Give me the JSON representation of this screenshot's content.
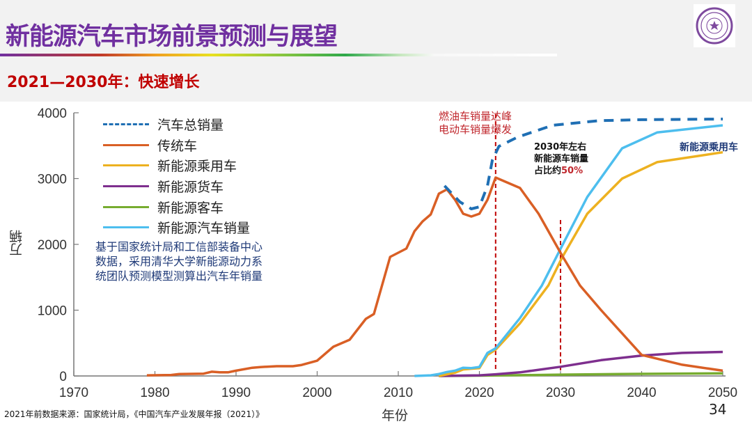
{
  "header": {
    "title": "新能源汽车市场前景预测与展望",
    "subtitle": "2021—2030年：快速增长",
    "logo": "清华大学"
  },
  "footer": {
    "source": "2021年前数据来源：国家统计局，《中国汽车产业发展年报（2021）》",
    "page_number": "34"
  },
  "chart_data": {
    "type": "line",
    "xlabel": "年份",
    "ylabel": "万辆",
    "xlim": [
      1970,
      2050
    ],
    "ylim": [
      0,
      4000
    ],
    "xticks": [
      1970,
      1980,
      1990,
      2000,
      2010,
      2020,
      2030,
      2040,
      2050
    ],
    "yticks": [
      0,
      1000,
      2000,
      3000,
      4000
    ],
    "grid": false,
    "legend_position": "top-left",
    "series": [
      {
        "name": "汽车总销量",
        "color": "#1f6fb4",
        "style": "dashed",
        "x": [
          2015.7,
          2017.6,
          2019,
          2020,
          2021,
          2021.6,
          2022.4,
          2024.7,
          2029,
          2034.8,
          2040,
          2050
        ],
        "y": [
          2890,
          2645,
          2540,
          2570,
          2890,
          3280,
          3490,
          3630,
          3810,
          3880,
          3895,
          3905
        ]
      },
      {
        "name": "传统车",
        "color": "#d95f25",
        "style": "solid",
        "x": [
          1979,
          1982,
          1983,
          1986,
          1987,
          1988,
          1989,
          1990,
          1992,
          1993,
          1995,
          1997,
          1998,
          2000,
          2002,
          2004,
          2006,
          2007,
          2009,
          2011,
          2012,
          2013,
          2014,
          2015,
          2016,
          2017,
          2018,
          2019,
          2020,
          2021,
          2022,
          2025,
          2027.3,
          2030.2,
          2032.4,
          2035,
          2040,
          2045,
          2050
        ],
        "y": [
          10,
          15,
          30,
          35,
          65,
          55,
          55,
          80,
          125,
          135,
          148,
          148,
          165,
          233,
          444,
          550,
          868,
          942,
          1810,
          1937,
          2200,
          2350,
          2455,
          2770,
          2836,
          2677,
          2466,
          2423,
          2466,
          2677,
          3016,
          2857,
          2466,
          1830,
          1375,
          1000,
          320,
          170,
          80
        ]
      },
      {
        "name": "新能源乘用车",
        "color": "#edb120",
        "style": "solid",
        "x": [
          2015,
          2017,
          2018,
          2019,
          2020,
          2021,
          2022,
          2025,
          2028.5,
          2030.2,
          2033.3,
          2037.6,
          2041.9,
          2050
        ],
        "y": [
          0,
          50,
          100,
          110,
          120,
          320,
          400,
          800,
          1375,
          1800,
          2466,
          3000,
          3250,
          3400
        ]
      },
      {
        "name": "新能源货车",
        "color": "#7e2f8e",
        "style": "solid",
        "x": [
          2015,
          2020,
          2022,
          2025,
          2030,
          2035,
          2040,
          2045,
          2050
        ],
        "y": [
          0,
          10,
          25,
          55,
          140,
          240,
          310,
          350,
          365
        ]
      },
      {
        "name": "新能源客车",
        "color": "#77ac30",
        "style": "solid",
        "x": [
          2015,
          2020,
          2025,
          2030,
          2040,
          2050
        ],
        "y": [
          0,
          5,
          12,
          20,
          32,
          40
        ]
      },
      {
        "name": "新能源汽车销量",
        "color": "#4dbeee",
        "style": "solid",
        "x": [
          2012,
          2014,
          2015,
          2016,
          2017,
          2018,
          2019,
          2020,
          2021,
          2022,
          2025,
          2027.7,
          2030.2,
          2033.3,
          2037.6,
          2041.9,
          2050
        ],
        "y": [
          0,
          10,
          30,
          60,
          80,
          125,
          120,
          136,
          350,
          420,
          880,
          1375,
          1980,
          2720,
          3460,
          3700,
          3810
        ]
      }
    ],
    "vlines": [
      {
        "x": 2022,
        "color": "#c00000"
      },
      {
        "x": 2030,
        "color": "#c00000"
      }
    ],
    "annotations": {
      "peak_line1": "燃油车销量达峰",
      "peak_line2": "电动车销量爆发",
      "share_line1": "2030年左右",
      "share_line2": "新能源车销量",
      "share_line3_prefix": "占比约",
      "share_line3_value": "50%",
      "series_label": "新能源乘用车"
    },
    "note": [
      "基于国家统计局和工信部装备中心",
      "数据，采用清华大学新能源动力系",
      "统团队预测模型测算出汽车年销量"
    ]
  }
}
